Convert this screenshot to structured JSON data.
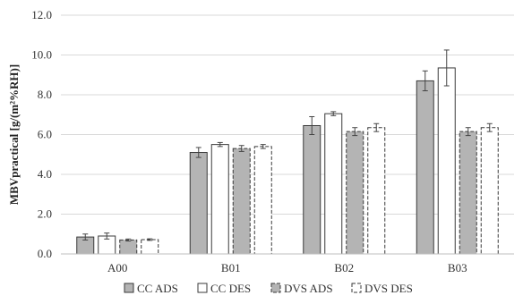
{
  "chart_data": {
    "type": "bar",
    "ylabel": "MBVpractical [g/(m²%RH)]",
    "xlabel": "",
    "title": "",
    "ylim": [
      0,
      12
    ],
    "yticks": [
      0,
      2,
      4,
      6,
      8,
      10,
      12
    ],
    "ytick_labels": [
      "0.0",
      "2.0",
      "4.0",
      "6.0",
      "8.0",
      "10.0",
      "12.0"
    ],
    "grid": true,
    "legend_position": "bottom",
    "categories": [
      "A00",
      "B01",
      "B02",
      "B03"
    ],
    "series": [
      {
        "name": "CC ADS",
        "style": "gray-fill",
        "values": [
          0.85,
          5.1,
          6.45,
          8.7
        ],
        "errors": [
          0.15,
          0.25,
          0.45,
          0.5
        ]
      },
      {
        "name": "CC DES",
        "style": "white-fill",
        "values": [
          0.9,
          5.5,
          7.05,
          9.35
        ],
        "errors": [
          0.15,
          0.1,
          0.1,
          0.9
        ]
      },
      {
        "name": "DVS ADS",
        "style": "gray-dashed",
        "values": [
          0.7,
          5.3,
          6.15,
          6.15
        ],
        "errors": [
          0.05,
          0.15,
          0.2,
          0.2
        ]
      },
      {
        "name": "DVS DES",
        "style": "white-dashed",
        "values": [
          0.72,
          5.4,
          6.35,
          6.35
        ],
        "errors": [
          0.04,
          0.1,
          0.2,
          0.2
        ]
      }
    ],
    "colors": {
      "gray": "#b4b4b4",
      "white": "#ffffff",
      "stroke": "#3a3a3a",
      "grid": "#d9d9d9"
    }
  }
}
